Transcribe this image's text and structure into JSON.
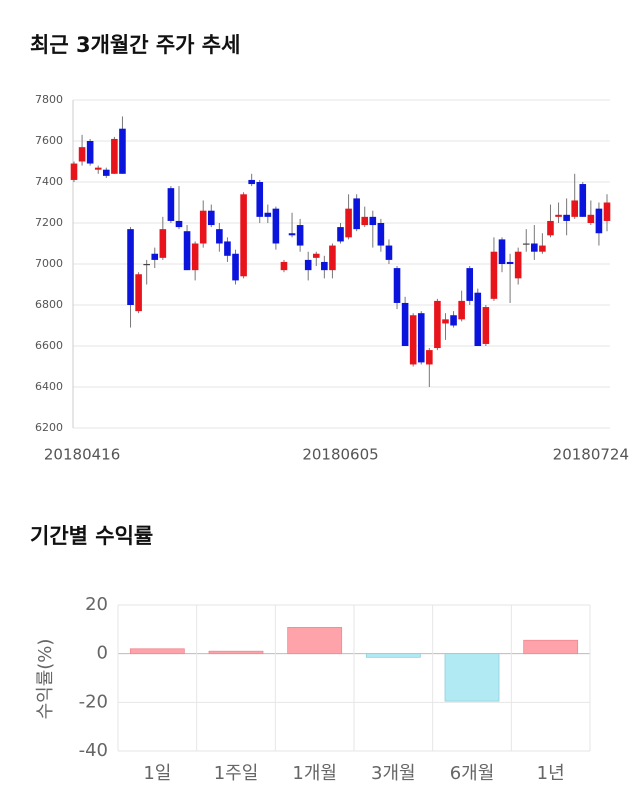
{
  "chart_data": [
    {
      "type": "candlestick",
      "title": "최근 3개월간 주가 추세",
      "categories": [
        null,
        "20180416",
        null,
        null,
        null,
        null,
        null,
        null,
        null,
        null,
        null,
        null,
        null,
        null,
        null,
        null,
        null,
        null,
        null,
        null,
        null,
        null,
        null,
        null,
        null,
        null,
        null,
        null,
        null,
        null,
        null,
        null,
        null,
        "20180605",
        null,
        null,
        null,
        null,
        null,
        null,
        null,
        null,
        null,
        null,
        null,
        null,
        null,
        null,
        null,
        null,
        null,
        null,
        null,
        null,
        null,
        null,
        null,
        null,
        null,
        null,
        null,
        null,
        null,
        null,
        "20180724",
        null,
        null
      ],
      "open": [
        7410,
        7500,
        7600,
        7460,
        7460,
        7440,
        7660,
        7170,
        6770,
        7000,
        7050,
        7030,
        7370,
        7210,
        7160,
        6970,
        7100,
        7260,
        7170,
        7110,
        7050,
        6940,
        7410,
        7400,
        7250,
        7270,
        6970,
        7150,
        7190,
        7020,
        7030,
        7010,
        6970,
        7180,
        7130,
        7320,
        7190,
        7230,
        7200,
        7090,
        6980,
        6810,
        6510,
        6760,
        6510,
        6590,
        6710,
        6750,
        6730,
        6980,
        6860,
        6610,
        6830,
        7120,
        7010,
        6930,
        7100,
        7100,
        7060,
        7140,
        7230,
        7240,
        7230,
        7390,
        7200,
        7270,
        7210
      ],
      "high": [
        7500,
        7630,
        7610,
        7480,
        7470,
        7620,
        7720,
        7180,
        6960,
        7020,
        7080,
        7230,
        7380,
        7380,
        7190,
        7110,
        7310,
        7290,
        7200,
        7130,
        7070,
        7350,
        7440,
        7410,
        7290,
        7280,
        7020,
        7250,
        7220,
        7060,
        7060,
        7040,
        7100,
        7200,
        7340,
        7340,
        7280,
        7260,
        7220,
        7120,
        6990,
        6840,
        6760,
        6770,
        6590,
        6830,
        6760,
        6770,
        6870,
        6990,
        6880,
        6800,
        7130,
        7130,
        7050,
        7080,
        7170,
        7190,
        7150,
        7290,
        7300,
        7320,
        7440,
        7400,
        7310,
        7300,
        7340
      ],
      "low": [
        7400,
        7480,
        7480,
        7440,
        7420,
        7440,
        7440,
        6690,
        6760,
        6900,
        6980,
        7020,
        7200,
        7170,
        6970,
        6920,
        7080,
        7180,
        7060,
        7010,
        6900,
        6930,
        7380,
        7200,
        7200,
        7070,
        6960,
        7130,
        7060,
        6920,
        6990,
        6930,
        6930,
        7100,
        7120,
        7160,
        7180,
        7080,
        7060,
        7000,
        6780,
        6600,
        6500,
        6510,
        6400,
        6580,
        6630,
        6690,
        6720,
        6800,
        6600,
        6600,
        6820,
        6960,
        6810,
        6900,
        7060,
        7020,
        7050,
        7130,
        7200,
        7140,
        7220,
        7230,
        7190,
        7090,
        7160
      ],
      "close": [
        7490,
        7570,
        7490,
        7470,
        7430,
        7610,
        7440,
        6800,
        6950,
        7000,
        7020,
        7170,
        7210,
        7180,
        6970,
        7100,
        7260,
        7190,
        7100,
        7040,
        6920,
        7340,
        7390,
        7230,
        7230,
        7100,
        7010,
        7140,
        7090,
        6970,
        7050,
        6970,
        7090,
        7110,
        7270,
        7170,
        7230,
        7190,
        7090,
        7020,
        6810,
        6600,
        6750,
        6520,
        6580,
        6820,
        6730,
        6700,
        6820,
        6820,
        6600,
        6790,
        7060,
        7000,
        7000,
        7060,
        7100,
        7060,
        7090,
        7210,
        7240,
        7210,
        7310,
        7230,
        7240,
        7150,
        7300
      ],
      "up_color": "#e8141c",
      "down_color": "#0a14dc",
      "ylim": [
        6200,
        7800
      ],
      "yticks": [
        6200,
        6400,
        6600,
        6800,
        7000,
        7200,
        7400,
        7600,
        7800
      ],
      "grid": true
    },
    {
      "type": "bar",
      "title": "기간별 수익률",
      "ylabel": "수익률(%)",
      "categories": [
        "1일",
        "1주일",
        "1개월",
        "3개월",
        "6개월",
        "1년"
      ],
      "values": [
        2,
        1,
        10.8,
        -1.5,
        -19.5,
        5.5
      ],
      "positive_color": "#ffa3aa",
      "negative_color": "#b2eaf4",
      "ylim": [
        -40,
        20
      ],
      "yticks": [
        20,
        0,
        -20,
        -40
      ],
      "grid": true
    }
  ]
}
